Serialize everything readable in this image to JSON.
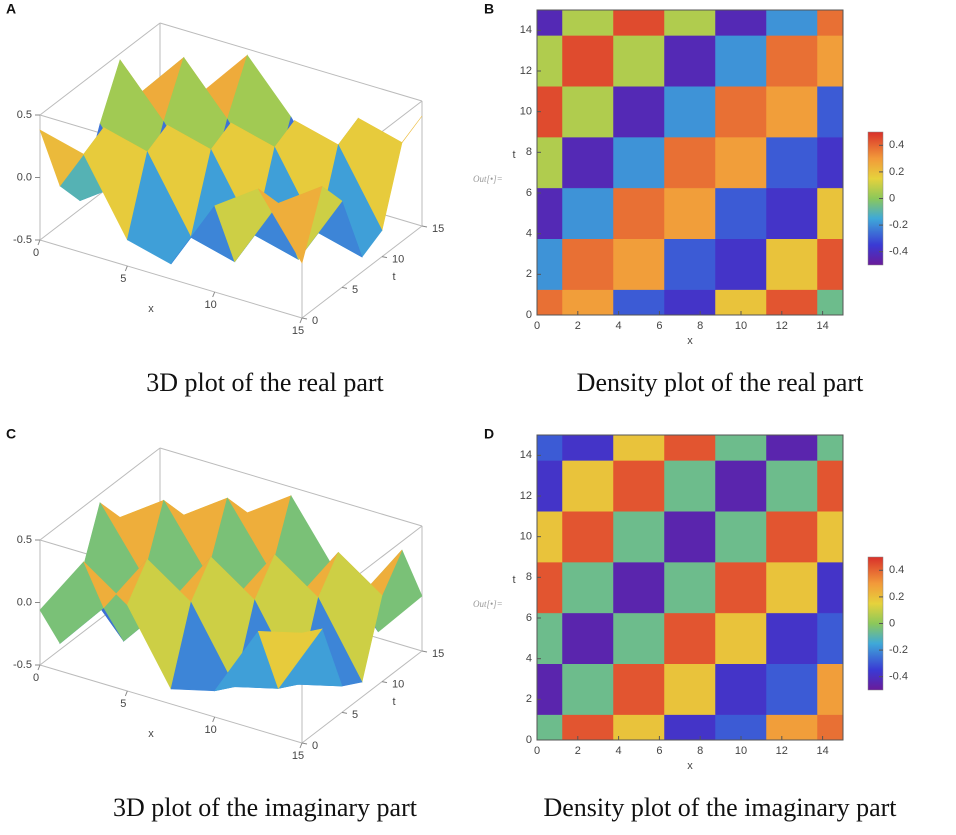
{
  "chart_data": [
    {
      "type": "surface3d",
      "panel_label": "A",
      "caption": "3D plot of the real part",
      "x_label": "x",
      "y_label": "t",
      "x": [
        0,
        2.5,
        5,
        7.5,
        10,
        12.5,
        15
      ],
      "y": [
        0,
        2.5,
        5,
        7.5,
        10,
        12.5,
        15
      ],
      "z": [
        [
          0.38,
          0.29,
          -0.29,
          -0.38,
          0.19,
          0.43,
          -0.06
        ],
        [
          -0.19,
          0.38,
          0.29,
          -0.29,
          -0.38,
          0.19,
          0.43
        ],
        [
          -0.43,
          -0.19,
          0.38,
          0.29,
          -0.29,
          -0.38,
          0.19
        ],
        [
          0.06,
          -0.43,
          -0.19,
          0.38,
          0.29,
          -0.29,
          -0.38
        ],
        [
          0.45,
          0.06,
          -0.43,
          -0.19,
          0.38,
          0.29,
          -0.29
        ],
        [
          0.06,
          0.45,
          0.06,
          -0.43,
          -0.19,
          0.38,
          0.29
        ],
        [
          -0.43,
          0.06,
          0.45,
          0.06,
          -0.43,
          -0.19,
          0.38
        ]
      ],
      "xlim": [
        0,
        15
      ],
      "ylim": [
        0,
        15
      ],
      "zlim": [
        -0.5,
        0.5
      ],
      "xticks": [
        0,
        5,
        10,
        15
      ],
      "yticks": [
        0,
        5,
        10,
        15
      ],
      "zticks": [
        -0.5,
        {
          "value": 0,
          "label": "0.0"
        },
        0.5
      ]
    },
    {
      "type": "density",
      "panel_label": "B",
      "caption": "Density plot of the real part",
      "x_label": "x",
      "y_label": "t",
      "out_label": "Out[•]=",
      "x": [
        0,
        2.5,
        5,
        7.5,
        10,
        12.5,
        15
      ],
      "y": [
        0,
        2.5,
        5,
        7.5,
        10,
        12.5,
        15
      ],
      "z": [
        [
          0.38,
          0.29,
          -0.29,
          -0.38,
          0.19,
          0.43,
          -0.06
        ],
        [
          -0.19,
          0.38,
          0.29,
          -0.29,
          -0.38,
          0.19,
          0.43
        ],
        [
          -0.43,
          -0.19,
          0.38,
          0.29,
          -0.29,
          -0.38,
          0.19
        ],
        [
          0.06,
          -0.43,
          -0.19,
          0.38,
          0.29,
          -0.29,
          -0.38
        ],
        [
          0.45,
          0.06,
          -0.43,
          -0.19,
          0.38,
          0.29,
          -0.29
        ],
        [
          0.06,
          0.45,
          0.06,
          -0.43,
          -0.19,
          0.38,
          0.29
        ],
        [
          -0.43,
          0.06,
          0.45,
          0.06,
          -0.43,
          -0.19,
          0.38
        ]
      ],
      "xlim": [
        0,
        15
      ],
      "ylim": [
        0,
        15
      ],
      "clim": [
        -0.5,
        0.5
      ],
      "xticks": [
        0,
        2,
        4,
        6,
        8,
        10,
        12,
        14
      ],
      "yticks": [
        0,
        2,
        4,
        6,
        8,
        10,
        12,
        14
      ],
      "cticks": [
        -0.4,
        -0.2,
        0,
        0.2,
        0.4
      ]
    },
    {
      "type": "surface3d",
      "panel_label": "C",
      "caption": "3D plot of the imaginary part",
      "x_label": "x",
      "y_label": "t",
      "x": [
        0,
        2.5,
        5,
        7.5,
        10,
        12.5,
        15
      ],
      "y": [
        0,
        2.5,
        5,
        7.5,
        10,
        12.5,
        15
      ],
      "z": [
        [
          -0.06,
          0.43,
          0.19,
          -0.38,
          -0.29,
          0.29,
          0.38
        ],
        [
          -0.45,
          -0.06,
          0.43,
          0.19,
          -0.38,
          -0.29,
          0.29
        ],
        [
          -0.06,
          -0.45,
          -0.06,
          0.43,
          0.19,
          -0.38,
          -0.29
        ],
        [
          0.43,
          -0.06,
          -0.45,
          -0.06,
          0.43,
          0.19,
          -0.38
        ],
        [
          0.19,
          0.43,
          -0.06,
          -0.45,
          -0.06,
          0.43,
          0.19
        ],
        [
          -0.38,
          0.19,
          0.43,
          -0.06,
          -0.45,
          -0.06,
          0.43
        ],
        [
          -0.29,
          -0.38,
          0.19,
          0.43,
          -0.06,
          -0.45,
          -0.06
        ]
      ],
      "xlim": [
        0,
        15
      ],
      "ylim": [
        0,
        15
      ],
      "zlim": [
        -0.5,
        0.5
      ],
      "xticks": [
        0,
        5,
        10,
        15
      ],
      "yticks": [
        0,
        5,
        10,
        15
      ],
      "zticks": [
        -0.5,
        {
          "value": 0,
          "label": "0.0"
        },
        0.5
      ]
    },
    {
      "type": "density",
      "panel_label": "D",
      "caption": "Density plot of the imaginary part",
      "x_label": "x",
      "y_label": "t",
      "out_label": "Out[•]=",
      "x": [
        0,
        2.5,
        5,
        7.5,
        10,
        12.5,
        15
      ],
      "y": [
        0,
        2.5,
        5,
        7.5,
        10,
        12.5,
        15
      ],
      "z": [
        [
          -0.06,
          0.43,
          0.19,
          -0.38,
          -0.29,
          0.29,
          0.38
        ],
        [
          -0.45,
          -0.06,
          0.43,
          0.19,
          -0.38,
          -0.29,
          0.29
        ],
        [
          -0.06,
          -0.45,
          -0.06,
          0.43,
          0.19,
          -0.38,
          -0.29
        ],
        [
          0.43,
          -0.06,
          -0.45,
          -0.06,
          0.43,
          0.19,
          -0.38
        ],
        [
          0.19,
          0.43,
          -0.06,
          -0.45,
          -0.06,
          0.43,
          0.19
        ],
        [
          -0.38,
          0.19,
          0.43,
          -0.06,
          -0.45,
          -0.06,
          0.43
        ],
        [
          -0.29,
          -0.38,
          0.19,
          0.43,
          -0.06,
          -0.45,
          -0.06
        ]
      ],
      "xlim": [
        0,
        15
      ],
      "ylim": [
        0,
        15
      ],
      "clim": [
        -0.5,
        0.5
      ],
      "xticks": [
        0,
        2,
        4,
        6,
        8,
        10,
        12,
        14
      ],
      "yticks": [
        0,
        2,
        4,
        6,
        8,
        10,
        12,
        14
      ],
      "cticks": [
        -0.4,
        -0.2,
        0,
        0.2,
        0.4
      ]
    }
  ]
}
